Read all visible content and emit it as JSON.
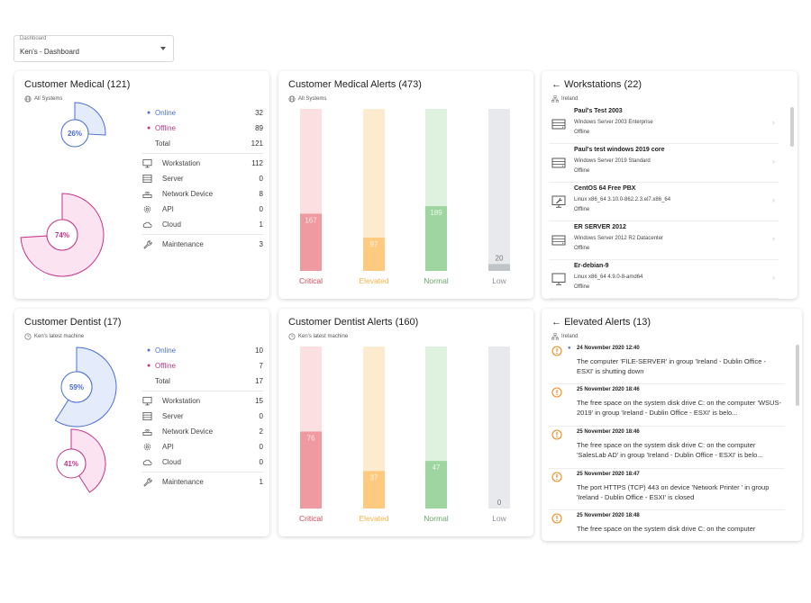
{
  "dashboard_select": {
    "label": "Dashboard",
    "value": "Ken's - Dashboard"
  },
  "colors": {
    "online": "#4c6fd6",
    "offline": "#c2378a",
    "critical": "#ee9aa0",
    "elevated": "#fdca7f",
    "normal": "#9fd5a0",
    "low": "#bfc4c9"
  },
  "medical_summary": {
    "title": "Customer Medical (121)",
    "scope": "All Systems",
    "online_pct_label": "26%",
    "offline_pct_label": "74%",
    "online_fraction": 0.26,
    "offline_fraction": 0.74,
    "rows": {
      "online": {
        "label": "Online",
        "value": "32"
      },
      "offline": {
        "label": "Offline",
        "value": "89"
      },
      "total": {
        "label": "Total",
        "value": "121"
      },
      "workstation": {
        "label": "Workstation",
        "value": "112"
      },
      "server": {
        "label": "Server",
        "value": "0"
      },
      "network": {
        "label": "Network Device",
        "value": "8"
      },
      "api": {
        "label": "API",
        "value": "0"
      },
      "cloud": {
        "label": "Cloud",
        "value": "1"
      },
      "maintenance": {
        "label": "Maintenance",
        "value": "3"
      }
    }
  },
  "medical_alerts": {
    "title": "Customer Medical Alerts (473)",
    "scope": "All Systems",
    "chart_data": {
      "type": "bar",
      "categories": [
        "Critical",
        "Elevated",
        "Normal",
        "Low"
      ],
      "values": [
        167,
        97,
        189,
        20
      ],
      "ylim": [
        0,
        473
      ]
    }
  },
  "workstations": {
    "title": "Workstations (22)",
    "scope": "Ireland",
    "items": [
      {
        "name": "Paul's Test 2003",
        "os": "Windows Server 2003 Enterprise",
        "status": "Offline",
        "icon": "server-icon"
      },
      {
        "name": "Paul's test windows 2019 core",
        "os": "Windows Server 2019 Standard",
        "status": "Offline",
        "icon": "server-icon"
      },
      {
        "name": "CentOS 64 Free PBX",
        "os": "Linux x86_64 3.10.0-862.2.3.el7.x86_64",
        "status": "Offline",
        "icon": "wrench-monitor-icon"
      },
      {
        "name": "ER SERVER 2012",
        "os": "Windows Server 2012 R2 Datacenter",
        "status": "Offline",
        "icon": "server-icon"
      },
      {
        "name": "Er-debian-9",
        "os": "Linux x86_64 4.9.0-8-amd64",
        "status": "Offline",
        "icon": "monitor-icon"
      }
    ]
  },
  "dentist_summary": {
    "title": "Customer Dentist (17)",
    "scope": "Ken's latest machine",
    "online_pct_label": "59%",
    "offline_pct_label": "41%",
    "online_fraction": 0.59,
    "offline_fraction": 0.41,
    "rows": {
      "online": {
        "label": "Online",
        "value": "10"
      },
      "offline": {
        "label": "Offline",
        "value": "7"
      },
      "total": {
        "label": "Total",
        "value": "17"
      },
      "workstation": {
        "label": "Workstation",
        "value": "15"
      },
      "server": {
        "label": "Server",
        "value": "0"
      },
      "network": {
        "label": "Network Device",
        "value": "2"
      },
      "api": {
        "label": "API",
        "value": "0"
      },
      "cloud": {
        "label": "Cloud",
        "value": "0"
      },
      "maintenance": {
        "label": "Maintenance",
        "value": "1"
      }
    }
  },
  "dentist_alerts": {
    "title": "Customer Dentist Alerts (160)",
    "scope": "Ken's latest machine",
    "chart_data": {
      "type": "bar",
      "categories": [
        "Critical",
        "Elevated",
        "Normal",
        "Low"
      ],
      "values": [
        76,
        37,
        47,
        0
      ],
      "ylim": [
        0,
        160
      ]
    }
  },
  "elevated_alerts": {
    "title": "Elevated Alerts (13)",
    "scope": "Ireland",
    "items": [
      {
        "date": "24 November 2020 12:40",
        "message": "The computer 'FILE-SERVER' in group 'Ireland - Dublin Office - ESXI' is shutting down"
      },
      {
        "date": "25 November 2020 18:46",
        "message": "The free space on the system disk drive C: on the computer 'WSUS-2019' in group 'Ireland - Dublin Office - ESXI' is belo..."
      },
      {
        "date": "25 November 2020 18:46",
        "message": "The free space on the system disk drive C: on the computer 'SalesLab AD' in group 'Ireland - Dublin Office - ESXI' is belo..."
      },
      {
        "date": "25 November 2020 18:47",
        "message": "The port HTTPS (TCP) 443 on device 'Network Printer ' in group 'Ireland - Dublin Office - ESXI' is closed"
      },
      {
        "date": "25 November 2020 18:48",
        "message": "The free space on the system disk drive C: on the computer"
      }
    ]
  }
}
